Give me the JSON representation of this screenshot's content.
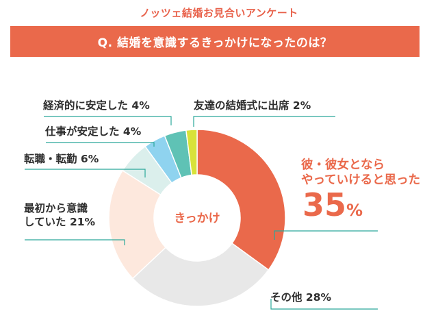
{
  "survey_title": "ノッツェ結婚お見合いアンケート",
  "question": "Q. 結婚を意識するきっかけになったのは？",
  "colors": {
    "accent": "#ea694b",
    "title_text": "#e8614a",
    "line": "#2aa89a"
  },
  "chart_data": {
    "type": "pie",
    "variant": "donut",
    "title": "Q. 結婚を意識するきっかけになったのは？",
    "center_label": "きっかけ",
    "slices": [
      {
        "label": "彼・彼女とならやっていけると思った",
        "label_line1": "彼・彼女となら",
        "label_line2": "やっていけると思った",
        "value": 35,
        "value_text": "35",
        "unit": "%",
        "color": "#ea694b"
      },
      {
        "label": "その他",
        "value": 28,
        "value_text": "28",
        "unit": "%",
        "color": "#e8e8e8"
      },
      {
        "label": "最初から意識していた",
        "label_line1": "最初から意識",
        "label_line2": "していた",
        "value": 21,
        "value_text": "21",
        "unit": "%",
        "color": "#fde8dd"
      },
      {
        "label": "転職・転勤",
        "value": 6,
        "value_text": "6",
        "unit": "%",
        "color": "#dbefec"
      },
      {
        "label": "仕事が安定した",
        "value": 4,
        "value_text": "4",
        "unit": "%",
        "color": "#8fd3ef"
      },
      {
        "label": "経済的に安定した",
        "value": 4,
        "value_text": "4",
        "unit": "%",
        "color": "#5fc2b5"
      },
      {
        "label": "友達の結婚式に出席",
        "value": 2,
        "value_text": "2",
        "unit": "%",
        "color": "#d8e23a"
      }
    ]
  }
}
